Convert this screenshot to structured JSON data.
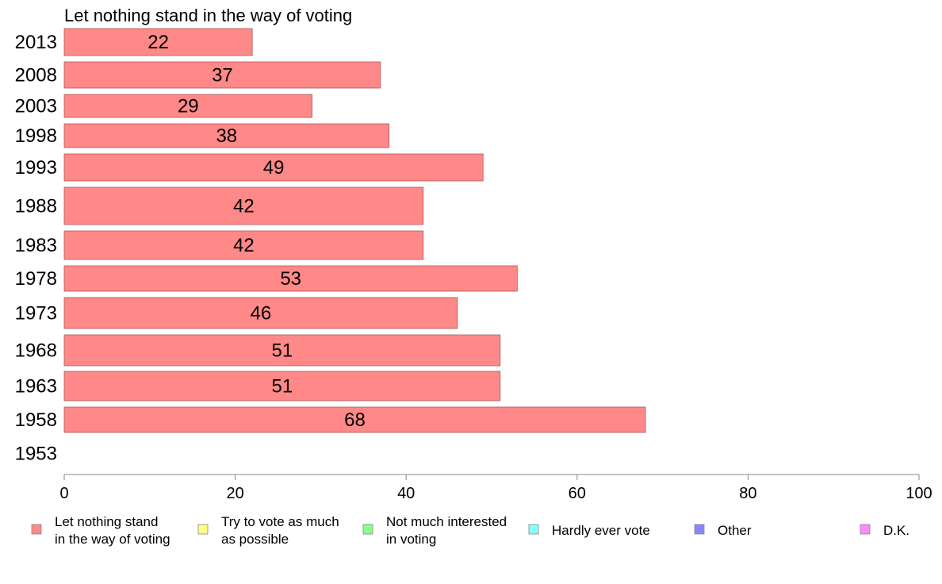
{
  "chart_data": {
    "type": "bar",
    "orientation": "horizontal",
    "title": "Let nothing stand in the way of voting",
    "categories": [
      "2013",
      "2008",
      "2003",
      "1998",
      "1993",
      "1988",
      "1983",
      "1978",
      "1973",
      "1968",
      "1963",
      "1958",
      "1953"
    ],
    "series": [
      {
        "name": "Let nothing stand in the way of voting",
        "values": [
          22,
          37,
          29,
          38,
          49,
          42,
          42,
          53,
          46,
          51,
          51,
          68,
          null
        ],
        "color": "#ff8888"
      }
    ],
    "xlim": [
      0,
      100
    ],
    "xticks": [
      0,
      20,
      40,
      60,
      80,
      100
    ],
    "grid": false,
    "legend_position": "bottom",
    "legend": [
      {
        "lines": [
          "Let nothing stand",
          "in the way of voting"
        ],
        "color": "#ff8888"
      },
      {
        "lines": [
          "Try to vote as much",
          "as possible"
        ],
        "color": "#ffff88"
      },
      {
        "lines": [
          "Not much interested",
          "in voting"
        ],
        "color": "#88ff88"
      },
      {
        "lines": [
          "Hardly ever vote"
        ],
        "color": "#88ffff"
      },
      {
        "lines": [
          "Other"
        ],
        "color": "#8888ff"
      },
      {
        "lines": [
          "D.K."
        ],
        "color": "#ff88ff"
      }
    ]
  }
}
